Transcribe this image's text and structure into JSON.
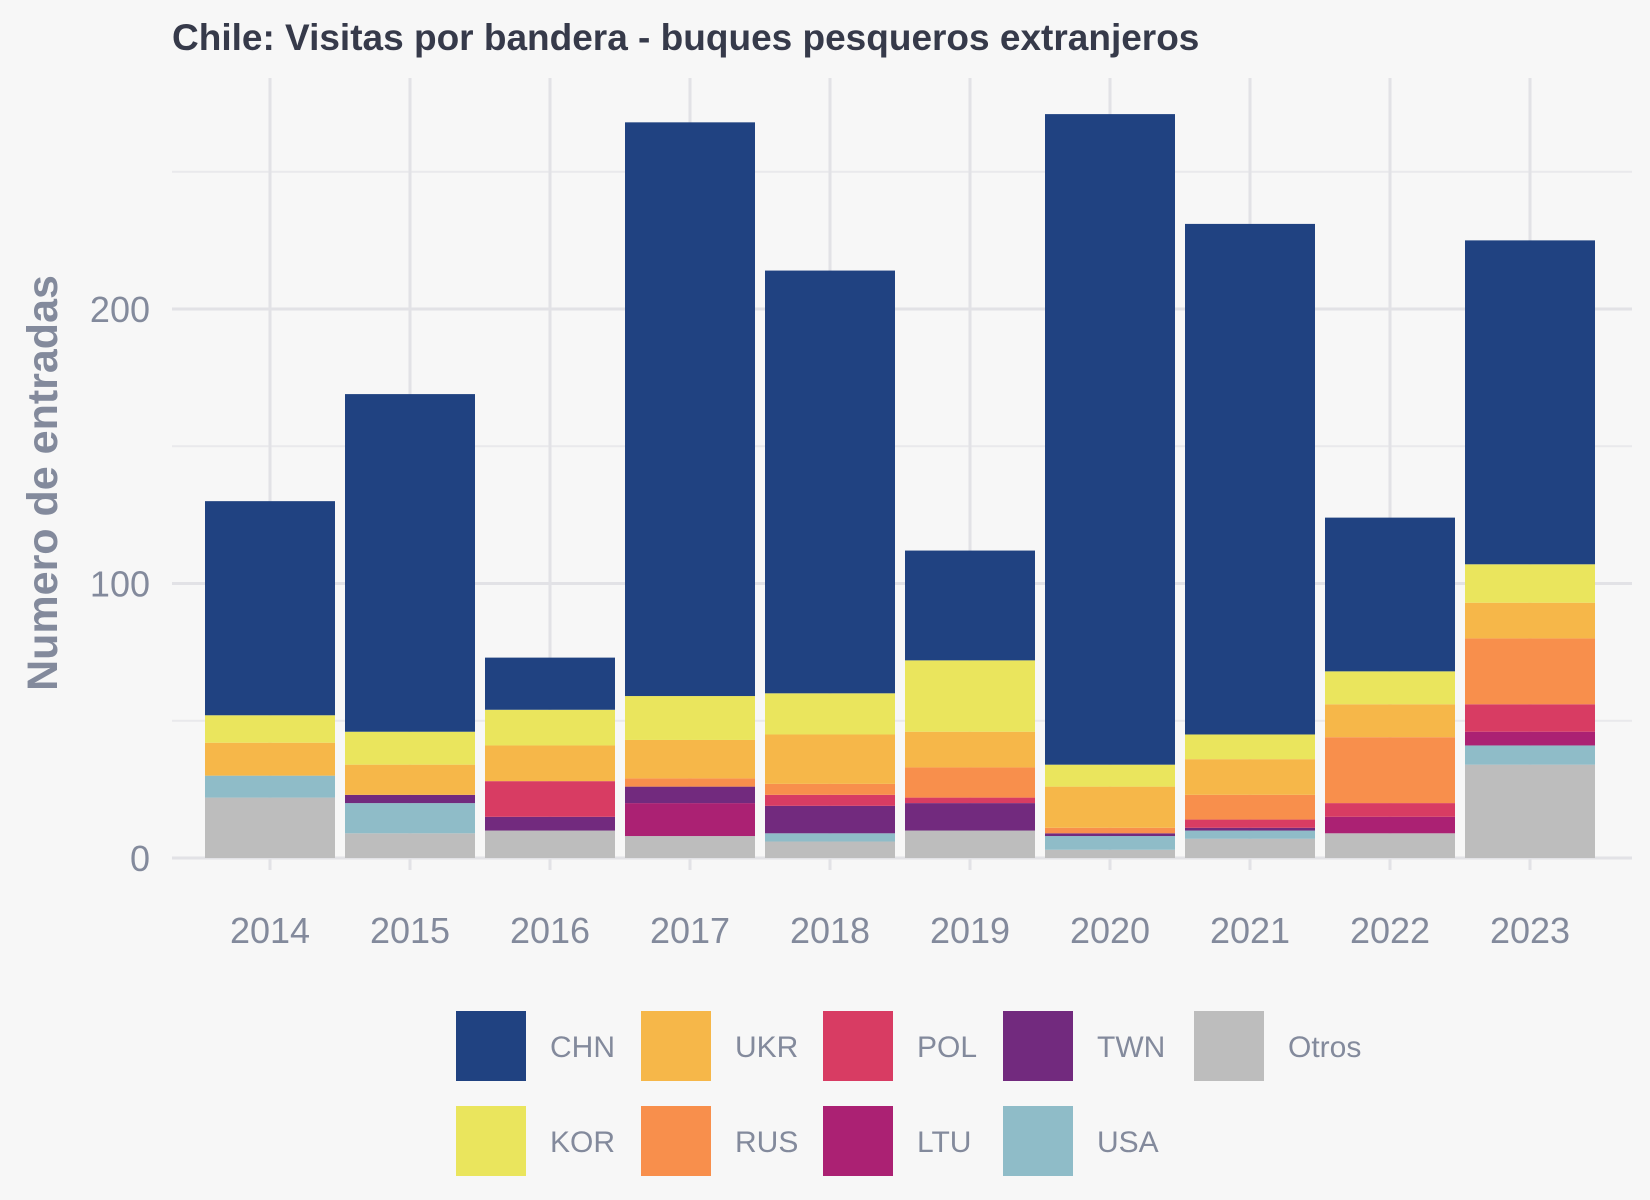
{
  "chart_data": {
    "type": "bar",
    "stacked": true,
    "title": "Chile:  Visitas por bandera - buques pesqueros extranjeros",
    "ylabel": "Numero de entradas",
    "xlabel": "",
    "ylim": [
      0,
      270
    ],
    "yticks": [
      0,
      100,
      200
    ],
    "categories": [
      "2014",
      "2015",
      "2016",
      "2017",
      "2018",
      "2019",
      "2020",
      "2021",
      "2022",
      "2023"
    ],
    "series": [
      {
        "name": "Otros",
        "color": "#bdbdbd",
        "values": [
          22,
          9,
          10,
          8,
          6,
          10,
          3,
          7,
          9,
          34
        ]
      },
      {
        "name": "USA",
        "color": "#8fbcc8",
        "values": [
          8,
          11,
          0,
          0,
          3,
          0,
          5,
          3,
          0,
          7
        ]
      },
      {
        "name": "LTU",
        "color": "#ab2173",
        "values": [
          0,
          0,
          0,
          12,
          0,
          0,
          0,
          0,
          6,
          5
        ]
      },
      {
        "name": "TWN",
        "color": "#722a7e",
        "values": [
          0,
          3,
          5,
          6,
          10,
          10,
          1,
          1,
          0,
          0
        ]
      },
      {
        "name": "POL",
        "color": "#d83c63",
        "values": [
          0,
          0,
          13,
          0,
          4,
          2,
          0,
          3,
          5,
          10
        ]
      },
      {
        "name": "RUS",
        "color": "#f88f4c",
        "values": [
          0,
          0,
          0,
          3,
          4,
          11,
          2,
          9,
          24,
          24
        ]
      },
      {
        "name": "UKR",
        "color": "#f6b749",
        "values": [
          12,
          11,
          13,
          14,
          18,
          13,
          15,
          13,
          12,
          13
        ]
      },
      {
        "name": "KOR",
        "color": "#eae55d",
        "values": [
          10,
          12,
          13,
          16,
          15,
          26,
          8,
          9,
          12,
          14
        ]
      },
      {
        "name": "CHN",
        "color": "#204281",
        "values": [
          78,
          123,
          19,
          209,
          154,
          40,
          237,
          186,
          56,
          118
        ]
      }
    ],
    "legend": {
      "position": "bottom",
      "order": [
        "CHN",
        "UKR",
        "POL",
        "TWN",
        "Otros",
        "KOR",
        "RUS",
        "LTU",
        "USA"
      ]
    },
    "grid": true
  }
}
